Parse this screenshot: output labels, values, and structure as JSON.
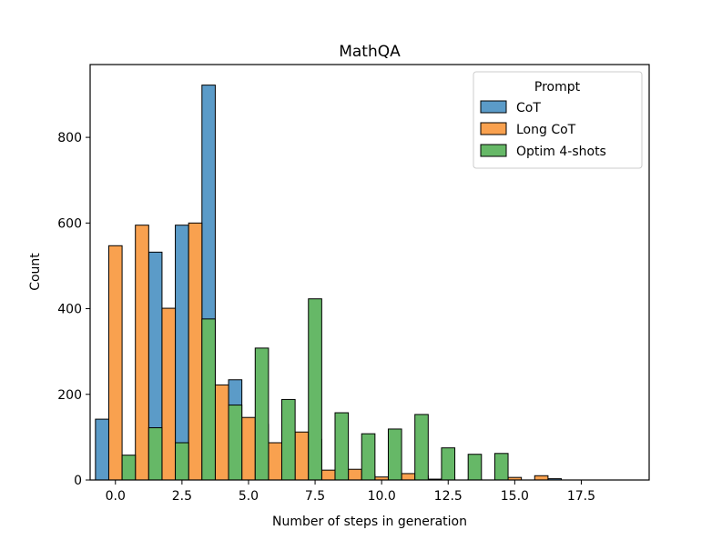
{
  "chart_data": {
    "type": "bar",
    "title": "MathQA",
    "xlabel": "Number of steps in generation",
    "ylabel": "Count",
    "xlim": [
      -0.95,
      20.05
    ],
    "ylim": [
      0,
      970
    ],
    "x_ticks": [
      0.0,
      2.5,
      5.0,
      7.5,
      10.0,
      12.5,
      15.0,
      17.5
    ],
    "x_tick_labels": [
      "0.0",
      "2.5",
      "5.0",
      "7.5",
      "10.0",
      "12.5",
      "15.0",
      "17.5"
    ],
    "y_ticks": [
      0,
      200,
      400,
      600,
      800
    ],
    "y_tick_labels": [
      "0",
      "200",
      "400",
      "600",
      "800"
    ],
    "bar_width": 0.5,
    "x": [
      0,
      1,
      2,
      3,
      4,
      5,
      6,
      7,
      8,
      9,
      10,
      11,
      12,
      13,
      14,
      15,
      16,
      17,
      18
    ],
    "series": [
      {
        "name": "CoT",
        "color": "#5b9bc8",
        "values": [
          142,
          0,
          532,
          595,
          922,
          234,
          130,
          85,
          95,
          17,
          12,
          12,
          10,
          5,
          2,
          0,
          0,
          3,
          0
        ]
      },
      {
        "name": "Long CoT",
        "color": "#f9a14f",
        "values": [
          547,
          595,
          401,
          600,
          222,
          146,
          87,
          112,
          23,
          25,
          7,
          15,
          2,
          0,
          0,
          6,
          10,
          0,
          0
        ]
      },
      {
        "name": "Optim 4-shots",
        "color": "#66b867",
        "values": [
          58,
          122,
          87,
          376,
          175,
          308,
          188,
          423,
          157,
          108,
          119,
          153,
          75,
          60,
          62,
          0,
          0,
          0,
          0
        ]
      }
    ],
    "legend": {
      "title": "Prompt",
      "position": "top-right"
    },
    "grid": false
  }
}
